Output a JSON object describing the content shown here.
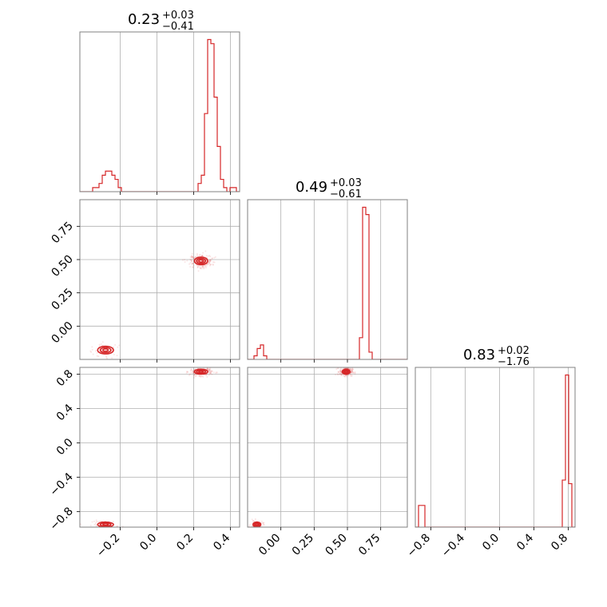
{
  "chart_data": {
    "type": "corner",
    "color": "#d62728",
    "grid": true,
    "params": [
      {
        "range": [
          -0.42,
          0.45
        ],
        "ticks": [
          "-0.2",
          "0.0",
          "0.2",
          "0.4"
        ],
        "tick_values": [
          -0.2,
          0.0,
          0.2,
          0.4
        ],
        "title": {
          "median": "0.23",
          "plus": "+0.03",
          "minus": "−0.41"
        },
        "hist_bins": [
          -0.42,
          0.45,
          50
        ],
        "hist": [
          0,
          0,
          0,
          0,
          1,
          1,
          2,
          4,
          5,
          5,
          4,
          3,
          1,
          0,
          0,
          0,
          0,
          0,
          0,
          0,
          0,
          0,
          0,
          0,
          0,
          0,
          0,
          0,
          0,
          0,
          0,
          0,
          0,
          0,
          0,
          0,
          0,
          2,
          4,
          19,
          37,
          36,
          23,
          11,
          3,
          1,
          0,
          1,
          1,
          0
        ]
      },
      {
        "range": [
          -0.25,
          0.95
        ],
        "ticks": [
          "0.00",
          "0.25",
          "0.50",
          "0.75"
        ],
        "tick_values": [
          0.0,
          0.25,
          0.5,
          0.75
        ],
        "title": {
          "median": "0.49",
          "plus": "+0.03",
          "minus": "−0.61"
        },
        "hist_bins": [
          -0.25,
          0.95,
          50
        ],
        "hist": [
          0,
          0,
          1,
          3,
          4,
          1,
          0,
          0,
          0,
          0,
          0,
          0,
          0,
          0,
          0,
          0,
          0,
          0,
          0,
          0,
          0,
          0,
          0,
          0,
          0,
          0,
          0,
          0,
          0,
          0,
          0,
          0,
          0,
          0,
          0,
          6,
          42,
          40,
          2,
          0,
          0,
          0,
          0,
          0,
          0,
          0,
          0,
          0,
          0,
          0
        ]
      },
      {
        "range": [
          -0.98,
          0.88
        ],
        "ticks": [
          "-0.8",
          "-0.4",
          "0.0",
          "0.4",
          "0.8"
        ],
        "tick_values": [
          -0.8,
          -0.4,
          0.0,
          0.4,
          0.8
        ],
        "title": {
          "median": "0.83",
          "plus": "+0.02",
          "minus": "−1.76"
        },
        "hist_bins": [
          -0.98,
          0.88,
          50
        ],
        "hist": [
          0,
          6,
          6,
          0,
          0,
          0,
          0,
          0,
          0,
          0,
          0,
          0,
          0,
          0,
          0,
          0,
          0,
          0,
          0,
          0,
          0,
          0,
          0,
          0,
          0,
          0,
          0,
          0,
          0,
          0,
          0,
          0,
          0,
          0,
          0,
          0,
          0,
          0,
          0,
          0,
          0,
          0,
          0,
          0,
          0,
          0,
          13,
          42,
          12,
          0
        ]
      }
    ],
    "modes": [
      {
        "center": [
          -0.28,
          -0.18,
          -0.95
        ],
        "sd": [
          0.03,
          0.02,
          0.02
        ],
        "weight": 0.2
      },
      {
        "center": [
          0.24,
          0.49,
          0.83
        ],
        "sd": [
          0.025,
          0.02,
          0.02
        ],
        "weight": 0.8
      }
    ],
    "contour_levels": [
      0.3,
      0.6,
      0.9
    ]
  }
}
